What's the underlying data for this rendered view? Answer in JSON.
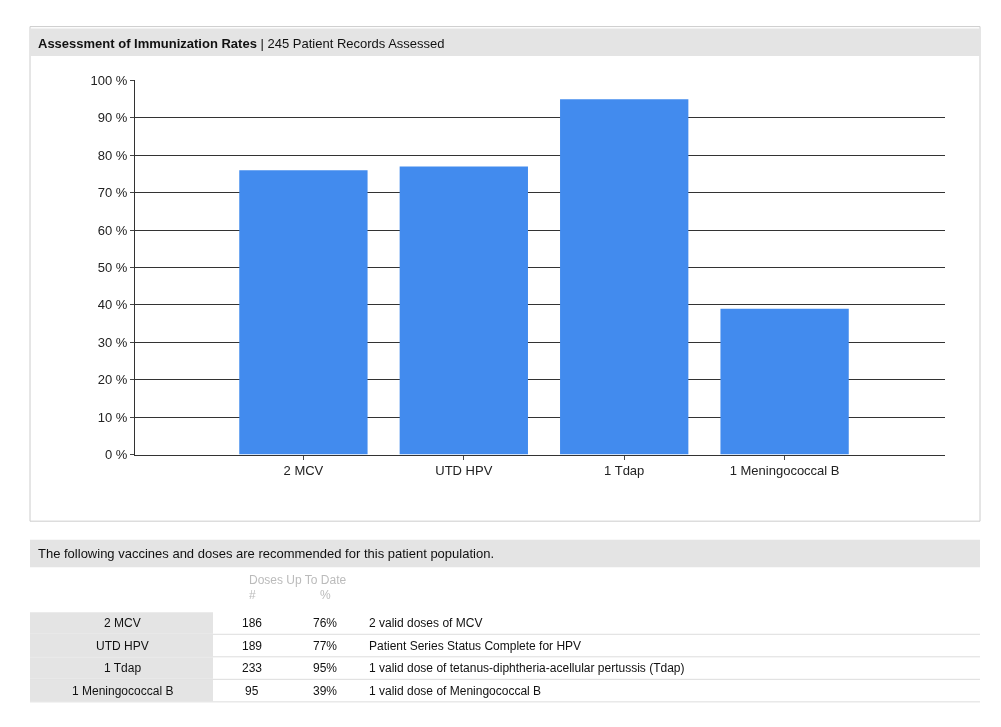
{
  "chart_data": {
    "type": "bar",
    "title": "Assessment of Immunization Rates",
    "subtitle": "| 245 Patient Records Assessed",
    "categories": [
      "2 MCV",
      "UTD HPV",
      "1 Tdap",
      "1 Meningococcal B"
    ],
    "values": [
      76,
      77,
      95,
      39
    ],
    "color": "#428bee",
    "ylim": [
      0,
      100
    ],
    "yticks": [
      {
        "value": 0,
        "label": "0 %"
      },
      {
        "value": 10,
        "label": "10 %"
      },
      {
        "value": 20,
        "label": "20 %"
      },
      {
        "value": 30,
        "label": "30 %"
      },
      {
        "value": 40,
        "label": "40 %"
      },
      {
        "value": 50,
        "label": "50 %"
      },
      {
        "value": 60,
        "label": "60 %"
      },
      {
        "value": 70,
        "label": "70 %"
      },
      {
        "value": 80,
        "label": "80 %"
      },
      {
        "value": 90,
        "label": "90 %"
      },
      {
        "value": 100,
        "label": "100 %"
      }
    ],
    "grid": "y",
    "annotations": [
      "The following vaccines and doses are recommended for this patient population.",
      "Doses Up To Date",
      "#",
      "%",
      "186",
      "189",
      "233",
      "95",
      "76%",
      "77%",
      "95%",
      "39%",
      "2 valid doses of MCV",
      "Patient Series Status Complete for HPV",
      "1 valid dose of tetanus-diphtheria-acellular pertussis (Tdap)",
      "1 valid dose of Meningococcal B"
    ]
  }
}
